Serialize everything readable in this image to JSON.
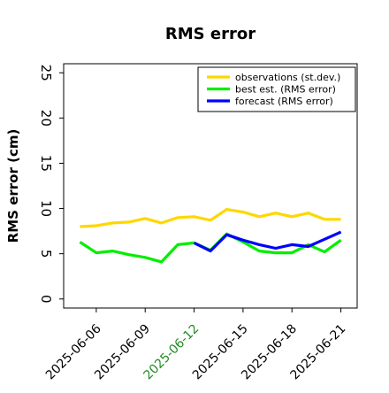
{
  "chart_data": {
    "type": "line",
    "title": "RMS error",
    "xlabel": "",
    "ylabel": "RMS error (cm)",
    "ylim": [
      -1,
      26
    ],
    "yticks": [
      0,
      5,
      10,
      15,
      20,
      25
    ],
    "xlim": [
      "2025-06-04",
      "2025-06-22"
    ],
    "xticks": [
      "2025-06-06",
      "2025-06-09",
      "2025-06-12",
      "2025-06-15",
      "2025-06-18",
      "2025-06-21"
    ],
    "highlight_tick": "2025-06-12",
    "highlight_color": "#228b22",
    "grid": false,
    "legend_position": "top-right",
    "series": [
      {
        "name": "observations (st.dev.)",
        "color": "#ffd700",
        "x": [
          "2025-06-05",
          "2025-06-06",
          "2025-06-07",
          "2025-06-08",
          "2025-06-09",
          "2025-06-10",
          "2025-06-11",
          "2025-06-12",
          "2025-06-13",
          "2025-06-14",
          "2025-06-15",
          "2025-06-16",
          "2025-06-17",
          "2025-06-18",
          "2025-06-19",
          "2025-06-20",
          "2025-06-21"
        ],
        "values": [
          8.0,
          8.1,
          8.4,
          8.5,
          8.9,
          8.4,
          9.0,
          9.1,
          8.7,
          9.9,
          9.6,
          9.1,
          9.5,
          9.1,
          9.5,
          8.8,
          8.8
        ]
      },
      {
        "name": "best est. (RMS error)",
        "color": "#00ee00",
        "x": [
          "2025-06-05",
          "2025-06-06",
          "2025-06-07",
          "2025-06-08",
          "2025-06-09",
          "2025-06-10",
          "2025-06-11",
          "2025-06-12",
          "2025-06-13",
          "2025-06-14",
          "2025-06-15",
          "2025-06-16",
          "2025-06-17",
          "2025-06-18",
          "2025-06-19",
          "2025-06-20",
          "2025-06-21"
        ],
        "values": [
          6.3,
          5.1,
          5.3,
          4.9,
          4.6,
          4.1,
          6.0,
          6.2,
          5.4,
          7.2,
          6.3,
          5.3,
          5.1,
          5.1,
          6.0,
          5.2,
          6.5
        ]
      },
      {
        "name": "forecast (RMS error)",
        "color": "#0000ff",
        "x": [
          "2025-06-12",
          "2025-06-13",
          "2025-06-14",
          "2025-06-15",
          "2025-06-16",
          "2025-06-17",
          "2025-06-18",
          "2025-06-19",
          "2025-06-20",
          "2025-06-21"
        ],
        "values": [
          6.2,
          5.3,
          7.1,
          6.5,
          6.0,
          5.6,
          6.0,
          5.8,
          6.6,
          7.4
        ]
      }
    ]
  }
}
